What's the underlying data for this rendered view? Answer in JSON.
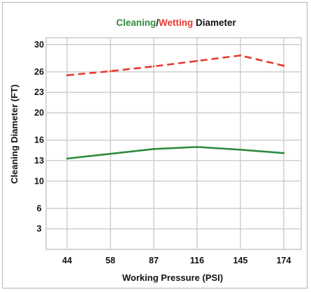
{
  "chart_data": {
    "type": "line",
    "title_parts": [
      {
        "text": "Cleaning",
        "color": "#2e8b3e"
      },
      {
        "text": "/",
        "color": "#111111"
      },
      {
        "text": "Wetting",
        "color": "#e8382c"
      },
      {
        "text": " Diameter",
        "color": "#111111"
      }
    ],
    "xlabel": "Working Pressure (PSI)",
    "ylabel": "Cleaning Diameter (FT)",
    "categories": [
      "44",
      "58",
      "87",
      "116",
      "145",
      "174"
    ],
    "yticks": [
      3,
      6,
      10,
      13,
      16,
      20,
      23,
      26,
      30
    ],
    "ylim": [
      0,
      31
    ],
    "grid": true,
    "series": [
      {
        "values": [
          25.5,
          26.1,
          26.8,
          27.6,
          28.4,
          26.9
        ],
        "color": "#e8382c",
        "style": "dashed"
      },
      {
        "values": [
          13.3,
          14.0,
          14.7,
          15.0,
          14.6,
          14.1
        ],
        "color": "#2e8b3e",
        "style": "solid"
      }
    ]
  }
}
